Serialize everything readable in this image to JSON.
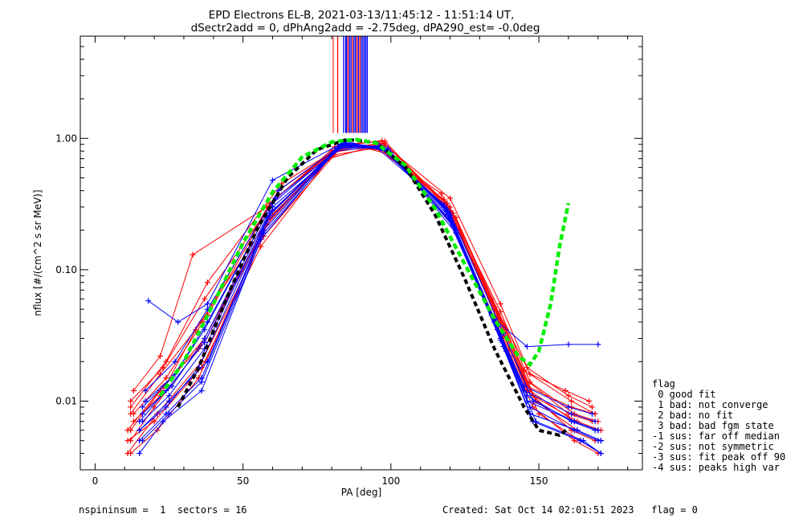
{
  "chart_data": {
    "type": "line",
    "title_line1": "EPD Electrons EL-B, 2021-03-13/11:45:12 - 11:51:14 UT,",
    "title_line2": "dSectr2add = 0, dPhAng2add = -2.75deg, dPA290_est=  -0.0deg",
    "xlabel": "PA [deg]",
    "ylabel": "nflux [#/(cm^2 s sr MeV)]",
    "xlim": [
      -5,
      185
    ],
    "ylim": [
      0.003,
      6.0
    ],
    "y_scale": "log",
    "x_ticks": [
      0,
      50,
      100,
      150
    ],
    "y_ticks": [
      0.01,
      0.1,
      1.0
    ],
    "y_tick_labels": [
      "0.01",
      "0.10",
      "1.00"
    ],
    "footer_left": "nspininsum =  1  sectors = 16",
    "footer_right": "Created: Sat Oct 14 02:01:51 2023   flag = 0",
    "legend": {
      "title": "flag",
      "entries": [
        " 0 good fit",
        " 1 bad: not converge",
        " 2 bad: no fit",
        " 3 bad: bad fgm state",
        "-1 sus: far off median",
        "-2 sus: not symmetric",
        "-3 sus: fit peak off 90",
        "-4 sus: peaks high var"
      ]
    },
    "series_colors": {
      "red_traces": "#ff0000",
      "blue_traces": "#0000ff",
      "fit": "#00ee00",
      "median": "#000000"
    },
    "red_series": [
      [
        [
          12,
          0.006
        ],
        [
          22,
          0.012
        ],
        [
          37,
          0.03
        ],
        [
          60,
          0.28
        ],
        [
          82,
          0.85
        ],
        [
          97,
          0.88
        ],
        [
          120,
          0.28
        ],
        [
          137,
          0.04
        ],
        [
          147,
          0.012
        ],
        [
          162,
          0.007
        ],
        [
          170,
          0.006
        ]
      ],
      [
        [
          12,
          0.005
        ],
        [
          20,
          0.009
        ],
        [
          35,
          0.025
        ],
        [
          58,
          0.22
        ],
        [
          80,
          0.8
        ],
        [
          95,
          0.9
        ],
        [
          118,
          0.33
        ],
        [
          135,
          0.05
        ],
        [
          145,
          0.015
        ],
        [
          160,
          0.008
        ],
        [
          168,
          0.007
        ]
      ],
      [
        [
          13,
          0.008
        ],
        [
          24,
          0.015
        ],
        [
          38,
          0.045
        ],
        [
          62,
          0.4
        ],
        [
          84,
          0.9
        ],
        [
          98,
          0.95
        ],
        [
          122,
          0.25
        ],
        [
          139,
          0.035
        ],
        [
          149,
          0.01
        ],
        [
          163,
          0.006
        ],
        [
          171,
          0.005
        ]
      ],
      [
        [
          11,
          0.004
        ],
        [
          21,
          0.008
        ],
        [
          36,
          0.02
        ],
        [
          57,
          0.18
        ],
        [
          81,
          0.75
        ],
        [
          96,
          0.85
        ],
        [
          119,
          0.3
        ],
        [
          136,
          0.045
        ],
        [
          146,
          0.013
        ],
        [
          161,
          0.009
        ],
        [
          169,
          0.008
        ]
      ],
      [
        [
          12,
          0.01
        ],
        [
          23,
          0.018
        ],
        [
          37,
          0.06
        ],
        [
          61,
          0.35
        ],
        [
          83,
          0.88
        ],
        [
          99,
          0.8
        ],
        [
          121,
          0.22
        ],
        [
          138,
          0.03
        ],
        [
          148,
          0.009
        ],
        [
          162,
          0.005
        ],
        [
          170,
          0.004
        ]
      ],
      [
        [
          13,
          0.007
        ],
        [
          22,
          0.011
        ],
        [
          34,
          0.035
        ],
        [
          59,
          0.25
        ],
        [
          82,
          0.82
        ],
        [
          97,
          0.92
        ],
        [
          120,
          0.35
        ],
        [
          137,
          0.055
        ],
        [
          147,
          0.016
        ],
        [
          161,
          0.01
        ],
        [
          169,
          0.008
        ]
      ],
      [
        [
          11,
          0.005
        ],
        [
          20,
          0.007
        ],
        [
          36,
          0.018
        ],
        [
          56,
          0.15
        ],
        [
          79,
          0.7
        ],
        [
          94,
          0.87
        ],
        [
          117,
          0.38
        ],
        [
          134,
          0.06
        ],
        [
          146,
          0.018
        ],
        [
          160,
          0.011
        ],
        [
          168,
          0.009
        ]
      ],
      [
        [
          12,
          0.009
        ],
        [
          24,
          0.02
        ],
        [
          38,
          0.08
        ],
        [
          63,
          0.45
        ],
        [
          85,
          0.92
        ],
        [
          100,
          0.75
        ],
        [
          123,
          0.2
        ],
        [
          140,
          0.025
        ],
        [
          150,
          0.008
        ],
        [
          164,
          0.005
        ],
        [
          171,
          0.004
        ]
      ],
      [
        [
          13,
          0.012
        ],
        [
          22,
          0.022
        ],
        [
          33,
          0.13
        ],
        [
          58,
          0.3
        ],
        [
          81,
          0.86
        ],
        [
          96,
          0.9
        ],
        [
          119,
          0.32
        ],
        [
          137,
          0.048
        ],
        [
          147,
          0.014
        ],
        [
          162,
          0.008
        ],
        [
          170,
          0.007
        ]
      ],
      [
        [
          12,
          0.004
        ],
        [
          21,
          0.006
        ],
        [
          35,
          0.015
        ],
        [
          57,
          0.2
        ],
        [
          80,
          0.78
        ],
        [
          95,
          0.88
        ],
        [
          118,
          0.34
        ],
        [
          135,
          0.052
        ],
        [
          145,
          0.017
        ],
        [
          159,
          0.012
        ],
        [
          167,
          0.01
        ]
      ],
      [
        [
          11,
          0.006
        ],
        [
          23,
          0.013
        ],
        [
          37,
          0.028
        ],
        [
          60,
          0.26
        ],
        [
          83,
          0.84
        ],
        [
          98,
          0.91
        ],
        [
          121,
          0.27
        ],
        [
          138,
          0.038
        ],
        [
          148,
          0.011
        ],
        [
          163,
          0.007
        ],
        [
          171,
          0.006
        ]
      ],
      [
        [
          12,
          0.008
        ],
        [
          22,
          0.016
        ],
        [
          36,
          0.04
        ],
        [
          59,
          0.32
        ],
        [
          82,
          0.87
        ],
        [
          97,
          0.96
        ],
        [
          120,
          0.3
        ],
        [
          136,
          0.042
        ],
        [
          146,
          0.012
        ],
        [
          161,
          0.006
        ],
        [
          169,
          0.005
        ]
      ]
    ],
    "blue_series": [
      [
        [
          15,
          0.006
        ],
        [
          25,
          0.01
        ],
        [
          38,
          0.02
        ],
        [
          60,
          0.3
        ],
        [
          84,
          0.88
        ],
        [
          98,
          0.82
        ],
        [
          120,
          0.25
        ],
        [
          137,
          0.03
        ],
        [
          147,
          0.008
        ],
        [
          163,
          0.006
        ],
        [
          171,
          0.005
        ]
      ],
      [
        [
          16,
          0.008
        ],
        [
          26,
          0.013
        ],
        [
          37,
          0.03
        ],
        [
          58,
          0.25
        ],
        [
          83,
          0.9
        ],
        [
          97,
          0.85
        ],
        [
          119,
          0.28
        ],
        [
          136,
          0.035
        ],
        [
          146,
          0.01
        ],
        [
          162,
          0.007
        ],
        [
          170,
          0.006
        ]
      ],
      [
        [
          15,
          0.005
        ],
        [
          24,
          0.008
        ],
        [
          36,
          0.015
        ],
        [
          57,
          0.2
        ],
        [
          82,
          0.85
        ],
        [
          96,
          0.87
        ],
        [
          118,
          0.3
        ],
        [
          135,
          0.04
        ],
        [
          145,
          0.012
        ],
        [
          161,
          0.008
        ],
        [
          169,
          0.007
        ]
      ],
      [
        [
          17,
          0.01
        ],
        [
          27,
          0.016
        ],
        [
          38,
          0.04
        ],
        [
          61,
          0.35
        ],
        [
          85,
          0.92
        ],
        [
          99,
          0.8
        ],
        [
          121,
          0.22
        ],
        [
          138,
          0.026
        ],
        [
          148,
          0.007
        ],
        [
          164,
          0.005
        ],
        [
          171,
          0.004
        ]
      ],
      [
        [
          16,
          0.007
        ],
        [
          25,
          0.011
        ],
        [
          37,
          0.025
        ],
        [
          59,
          0.27
        ],
        [
          84,
          0.89
        ],
        [
          98,
          0.83
        ],
        [
          120,
          0.26
        ],
        [
          137,
          0.032
        ],
        [
          147,
          0.009
        ],
        [
          162,
          0.006
        ],
        [
          170,
          0.005
        ]
      ],
      [
        [
          15,
          0.004
        ],
        [
          23,
          0.007
        ],
        [
          36,
          0.012
        ],
        [
          56,
          0.17
        ],
        [
          81,
          0.8
        ],
        [
          95,
          0.86
        ],
        [
          117,
          0.32
        ],
        [
          134,
          0.045
        ],
        [
          145,
          0.013
        ],
        [
          160,
          0.009
        ],
        [
          168,
          0.008
        ]
      ],
      [
        [
          18,
          0.058
        ],
        [
          28,
          0.04
        ],
        [
          38,
          0.055
        ],
        [
          60,
          0.48
        ],
        [
          84,
          0.93
        ],
        [
          99,
          0.84
        ],
        [
          122,
          0.2
        ],
        [
          140,
          0.022
        ],
        [
          149,
          0.007
        ],
        [
          165,
          0.005
        ],
        [
          171,
          0.004
        ]
      ],
      [
        [
          16,
          0.009
        ],
        [
          26,
          0.015
        ],
        [
          37,
          0.035
        ],
        [
          60,
          0.32
        ],
        [
          84,
          0.91
        ],
        [
          98,
          0.82
        ],
        [
          120,
          0.24
        ],
        [
          137,
          0.029
        ],
        [
          147,
          0.008
        ],
        [
          163,
          0.006
        ],
        [
          171,
          0.005
        ]
      ],
      [
        [
          15,
          0.006
        ],
        [
          24,
          0.009
        ],
        [
          35,
          0.018
        ],
        [
          58,
          0.23
        ],
        [
          83,
          0.87
        ],
        [
          97,
          0.86
        ],
        [
          119,
          0.29
        ],
        [
          136,
          0.037
        ],
        [
          146,
          0.011
        ],
        [
          161,
          0.007
        ],
        [
          169,
          0.006
        ]
      ],
      [
        [
          17,
          0.012
        ],
        [
          27,
          0.02
        ],
        [
          38,
          0.05
        ],
        [
          62,
          0.4
        ],
        [
          85,
          0.95
        ],
        [
          100,
          0.78
        ],
        [
          122,
          0.19
        ],
        [
          139,
          0.024
        ],
        [
          148,
          0.007
        ],
        [
          164,
          0.005
        ],
        [
          171,
          0.004
        ]
      ],
      [
        [
          16,
          0.005
        ],
        [
          25,
          0.008
        ],
        [
          36,
          0.014
        ],
        [
          57,
          0.19
        ],
        [
          82,
          0.83
        ],
        [
          96,
          0.88
        ],
        [
          118,
          0.31
        ],
        [
          135,
          0.042
        ],
        [
          146,
          0.026
        ],
        [
          160,
          0.027
        ],
        [
          170,
          0.027
        ]
      ],
      [
        [
          15,
          0.007
        ],
        [
          24,
          0.012
        ],
        [
          37,
          0.028
        ],
        [
          59,
          0.26
        ],
        [
          83,
          0.88
        ],
        [
          97,
          0.84
        ],
        [
          120,
          0.27
        ],
        [
          138,
          0.033
        ],
        [
          148,
          0.01
        ],
        [
          162,
          0.007
        ],
        [
          170,
          0.006
        ]
      ]
    ],
    "fit_curve": [
      [
        22,
        0.011
      ],
      [
        30,
        0.02
      ],
      [
        40,
        0.055
      ],
      [
        50,
        0.16
      ],
      [
        60,
        0.39
      ],
      [
        70,
        0.72
      ],
      [
        80,
        0.94
      ],
      [
        88,
        0.98
      ],
      [
        95,
        0.92
      ],
      [
        105,
        0.62
      ],
      [
        115,
        0.29
      ],
      [
        125,
        0.11
      ],
      [
        135,
        0.042
      ],
      [
        143,
        0.022
      ],
      [
        147,
        0.019
      ],
      [
        150,
        0.024
      ],
      [
        154,
        0.055
      ],
      [
        157,
        0.15
      ],
      [
        160,
        0.32
      ]
    ],
    "median_curve": [
      [
        28,
        0.009
      ],
      [
        35,
        0.018
      ],
      [
        45,
        0.065
      ],
      [
        55,
        0.21
      ],
      [
        65,
        0.5
      ],
      [
        75,
        0.82
      ],
      [
        85,
        0.98
      ],
      [
        95,
        0.93
      ],
      [
        105,
        0.6
      ],
      [
        115,
        0.26
      ],
      [
        125,
        0.085
      ],
      [
        135,
        0.025
      ],
      [
        145,
        0.009
      ],
      [
        150,
        0.006
      ],
      [
        157,
        0.0055
      ],
      [
        160,
        0.0062
      ]
    ],
    "spikes_red_x": [
      82,
      85.5,
      87,
      88.5,
      89.5
    ],
    "spikes_blue_x": [
      84,
      84.7,
      85,
      86,
      86.5,
      87.5,
      88,
      89,
      90,
      90.5,
      91,
      91.5,
      92
    ]
  }
}
